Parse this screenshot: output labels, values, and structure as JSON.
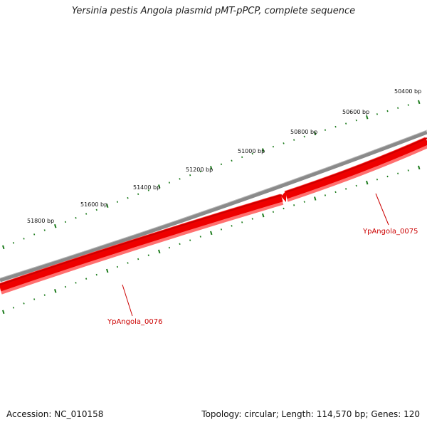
{
  "title": "Yersinia pestis Angola plasmid pMT-pPCP, complete sequence",
  "footer": {
    "accession": "Accession: NC_010158",
    "info": "Topology: circular; Length: 114,570 bp; Genes: 120"
  },
  "colors": {
    "backbone": "#8a8a8a",
    "gene_fill": "#ee0000",
    "gene_light": "#ff7070",
    "tick_green": "#1a7a1a",
    "gene_label": "#cc0000"
  },
  "bp_labels": [
    "50400 bp",
    "50600 bp",
    "50800 bp",
    "51000 bp",
    "51200 bp",
    "51400 bp",
    "51600 bp",
    "51800 bp"
  ],
  "genes": [
    {
      "name": "YpAngola_0075",
      "strand": "minus"
    },
    {
      "name": "YpAngola_0076",
      "strand": "minus"
    }
  ]
}
